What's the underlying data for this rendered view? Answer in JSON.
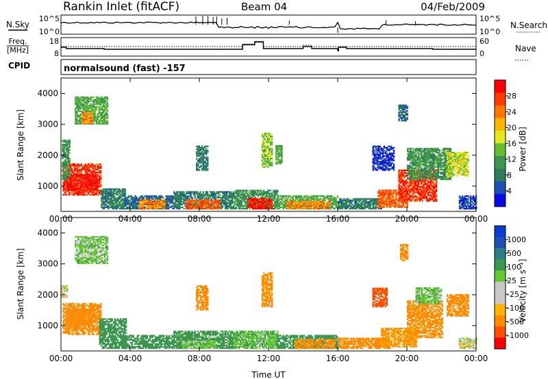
{
  "header": {
    "site": "Rankin Inlet (fitACF)",
    "beam": "Beam 04",
    "date": "04/Feb/2009"
  },
  "top_panels": {
    "noise_label": "N.Sky",
    "noise_ticks": [
      "10^5",
      "10^0"
    ],
    "noise_right_label": "N.Search",
    "noise_right_ticks": [
      "10^5",
      "10^0"
    ],
    "freq_label_1": "Freq.",
    "freq_label_2": "[MHz]",
    "freq_ticks": [
      "18",
      "8"
    ],
    "nave_label": "Nave",
    "nave_ticks": [
      "60",
      "0"
    ],
    "cpid_label": "CPID",
    "cpid_text": "normalsound (fast) -157"
  },
  "colors": {
    "power_scale": [
      "#0a0ae6",
      "#1e50b4",
      "#2e7d5a",
      "#3c9650",
      "#64be32",
      "#e6e61e",
      "#ffb400",
      "#ff7800",
      "#ff3c00",
      "#ff0000"
    ],
    "velocity_scale": [
      "#ff0000",
      "#ff5000",
      "#ff8c00",
      "#ffb400",
      "#c8c8c8",
      "#c8c8c8",
      "#64c832",
      "#3c9650",
      "#2e7d8c",
      "#1e50b4",
      "#0a3cd2"
    ]
  },
  "chart_data": [
    {
      "type": "heatmap",
      "name": "power",
      "ylabel": "Slant Range [km]",
      "xlabel": "",
      "ylim": [
        180,
        4500
      ],
      "yticks": [
        "1000",
        "2000",
        "3000",
        "4000"
      ],
      "xticks": [
        "00:00",
        "04:00",
        "08:00",
        "12:00",
        "16:00",
        "20:00",
        "00:00"
      ],
      "colorbar_label": "Power [dB]",
      "colorbar_ticks": [
        "4",
        "8",
        "12",
        "16",
        "20",
        "24",
        "28"
      ],
      "regions": [
        {
          "t0": 0.1,
          "t1": 2.3,
          "r0": 700,
          "r1": 1700,
          "level": 28
        },
        {
          "t0": 0.3,
          "t1": 2.1,
          "r0": 850,
          "r1": 1350,
          "level": 30
        },
        {
          "t0": 0.05,
          "t1": 0.5,
          "r0": 1200,
          "r1": 2500,
          "level": 12
        },
        {
          "t0": 2.3,
          "t1": 3.7,
          "r0": 250,
          "r1": 900,
          "level": 10
        },
        {
          "t0": 3.7,
          "t1": 6.5,
          "r0": 250,
          "r1": 700,
          "level": 8
        },
        {
          "t0": 4.5,
          "t1": 6.0,
          "r0": 250,
          "r1": 550,
          "level": 24
        },
        {
          "t0": 6.5,
          "t1": 10.0,
          "r0": 250,
          "r1": 800,
          "level": 10
        },
        {
          "t0": 7.2,
          "t1": 9.2,
          "r0": 250,
          "r1": 550,
          "level": 26
        },
        {
          "t0": 10.0,
          "t1": 12.5,
          "r0": 250,
          "r1": 850,
          "level": 12
        },
        {
          "t0": 10.8,
          "t1": 12.2,
          "r0": 250,
          "r1": 600,
          "level": 30
        },
        {
          "t0": 12.5,
          "t1": 16.0,
          "r0": 250,
          "r1": 700,
          "level": 14
        },
        {
          "t0": 13.0,
          "t1": 15.5,
          "r0": 250,
          "r1": 500,
          "level": 24
        },
        {
          "t0": 16.0,
          "t1": 18.5,
          "r0": 250,
          "r1": 600,
          "level": 10
        },
        {
          "t0": 18.3,
          "t1": 20.0,
          "r0": 300,
          "r1": 850,
          "level": 26
        },
        {
          "t0": 19.5,
          "t1": 21.7,
          "r0": 500,
          "r1": 1500,
          "level": 28
        },
        {
          "t0": 20.0,
          "t1": 22.5,
          "r0": 1200,
          "r1": 2200,
          "level": 12
        },
        {
          "t0": 22.3,
          "t1": 23.5,
          "r0": 1300,
          "r1": 2100,
          "level": 18
        },
        {
          "t0": 23.0,
          "t1": 24.0,
          "r0": 250,
          "r1": 700,
          "level": 6
        },
        {
          "t0": 18.0,
          "t1": 19.2,
          "r0": 1500,
          "r1": 2300,
          "level": 5
        },
        {
          "t0": 0.8,
          "t1": 2.7,
          "r0": 3000,
          "r1": 3900,
          "level": 14
        },
        {
          "t0": 1.2,
          "t1": 1.8,
          "r0": 3000,
          "r1": 3400,
          "level": 24
        },
        {
          "t0": 11.6,
          "t1": 12.2,
          "r0": 1600,
          "r1": 2700,
          "level": 16
        },
        {
          "t0": 7.8,
          "t1": 8.5,
          "r0": 1500,
          "r1": 2300,
          "level": 10
        },
        {
          "t0": 12.4,
          "t1": 12.8,
          "r0": 1700,
          "r1": 2300,
          "level": 14
        },
        {
          "t0": 19.5,
          "t1": 20.0,
          "r0": 3100,
          "r1": 3600,
          "level": 8
        }
      ]
    },
    {
      "type": "heatmap",
      "name": "velocity",
      "ylabel": "Slant Range [km]",
      "xlabel": "Time UT",
      "ylim": [
        180,
        4500
      ],
      "yticks": [
        "1000",
        "2000",
        "3000",
        "4000"
      ],
      "xticks": [
        "00:00",
        "04:00",
        "08:00",
        "12:00",
        "16:00",
        "20:00",
        "00:00"
      ],
      "colorbar_label": "Velocity [m s⁻¹]",
      "colorbar_ticks": [
        "1000",
        "500",
        "100",
        "25",
        "-25",
        "-100",
        "-500",
        "-1000"
      ],
      "regions": [
        {
          "t0": 0.1,
          "t1": 2.3,
          "r0": 700,
          "r1": 1700,
          "level": -200
        },
        {
          "t0": 0.3,
          "t1": 1.8,
          "r0": 1000,
          "r1": 1500,
          "level": -400
        },
        {
          "t0": 2.2,
          "t1": 3.8,
          "r0": 250,
          "r1": 1200,
          "level": 200
        },
        {
          "t0": 3.5,
          "t1": 6.5,
          "r0": 250,
          "r1": 700,
          "level": 400
        },
        {
          "t0": 6.5,
          "t1": 10.0,
          "r0": 250,
          "r1": 800,
          "level": 150
        },
        {
          "t0": 7.0,
          "t1": 9.0,
          "r0": 250,
          "r1": 500,
          "level": 60
        },
        {
          "t0": 10.0,
          "t1": 12.5,
          "r0": 250,
          "r1": 800,
          "level": 80
        },
        {
          "t0": 12.5,
          "t1": 16.0,
          "r0": 250,
          "r1": 700,
          "level": 300
        },
        {
          "t0": 13.5,
          "t1": 15.8,
          "r0": 250,
          "r1": 550,
          "level": -150
        },
        {
          "t0": 16.0,
          "t1": 19.0,
          "r0": 250,
          "r1": 600,
          "level": -200
        },
        {
          "t0": 18.5,
          "t1": 20.5,
          "r0": 300,
          "r1": 900,
          "level": -120
        },
        {
          "t0": 20.0,
          "t1": 22.0,
          "r0": 600,
          "r1": 1800,
          "level": -150
        },
        {
          "t0": 20.5,
          "t1": 22.0,
          "r0": 1700,
          "r1": 2200,
          "level": 60
        },
        {
          "t0": 22.3,
          "t1": 23.5,
          "r0": 1300,
          "r1": 2000,
          "level": -180
        },
        {
          "t0": 23.0,
          "t1": 24.0,
          "r0": 250,
          "r1": 600,
          "level": 0
        },
        {
          "t0": 18.0,
          "t1": 18.8,
          "r0": 1600,
          "r1": 2200,
          "level": -800
        },
        {
          "t0": 0.8,
          "t1": 2.7,
          "r0": 3000,
          "r1": 3900,
          "level": 60
        },
        {
          "t0": 11.6,
          "t1": 12.2,
          "r0": 1600,
          "r1": 2700,
          "level": -150
        },
        {
          "t0": 7.8,
          "t1": 8.5,
          "r0": 1500,
          "r1": 2300,
          "level": -200
        },
        {
          "t0": 0.0,
          "t1": 0.4,
          "r0": 1900,
          "r1": 2300,
          "level": 0
        },
        {
          "t0": 19.6,
          "t1": 20.0,
          "r0": 3100,
          "r1": 3600,
          "level": -150
        }
      ]
    }
  ]
}
